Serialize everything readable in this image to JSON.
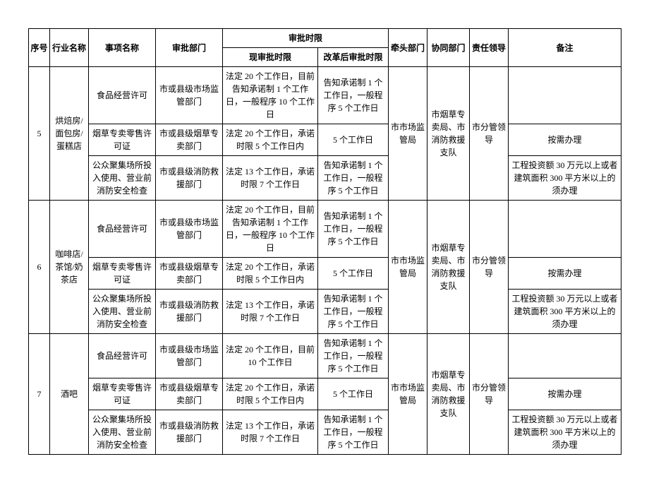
{
  "headers": {
    "seq": "序号",
    "industry": "行业名称",
    "item": "事项名称",
    "dept": "审批部门",
    "approvalTime": "审批时限",
    "current": "现审批时限",
    "reform": "改革后审批时限",
    "leadDept": "牵头部门",
    "assistDept": "协同部门",
    "respLeader": "责任领导",
    "note": "备注"
  },
  "groups": [
    {
      "seq": "5",
      "industry": "烘焙房/面包房/蛋糕店",
      "leadDept": "市市场监管局",
      "assistDept": "市烟草专卖局、市消防救援支队",
      "respLeader": "市分管领导",
      "rows": [
        {
          "item": "食品经营许可",
          "dept": "市或县级市场监管部门",
          "current": "法定 20 个工作日，目前告知承诺制 1 个工作日，一般程序 10 个工作日",
          "reform": "告知承诺制 1 个工作日，一般程序 5 个工作日",
          "note": ""
        },
        {
          "item": "烟草专卖零售许可证",
          "dept": "市或县级烟草专卖部门",
          "current": "法定 20 个工作日，承诺时限 5 个工作日内",
          "reform": "5 个工作日",
          "note": "按需办理"
        },
        {
          "item": "公众聚集场所投入使用、营业前消防安全检查",
          "dept": "市或县级消防救援部门",
          "current": "法定 13 个工作日，承诺时限 7 个工作日",
          "reform": "告知承诺制 1 个工作日，一般程序 5 个工作日",
          "note": "工程投资额 30 万元以上或者建筑面积 300 平方米以上的须办理"
        }
      ]
    },
    {
      "seq": "6",
      "industry": "咖啡店/茶馆/奶茶店",
      "leadDept": "市市场监管局",
      "assistDept": "市烟草专卖局、市消防救援支队",
      "respLeader": "市分管领导",
      "rows": [
        {
          "item": "食品经营许可",
          "dept": "市或县级市场监管部门",
          "current": "法定 20 个工作日，目前告知承诺制 1 个工作日，一般程序 10 个工作日",
          "reform": "告知承诺制 1 个工作日，一般程序 5 个工作日",
          "note": ""
        },
        {
          "item": "烟草专卖零售许可证",
          "dept": "市或县级烟草专卖部门",
          "current": "法定 20 个工作日，承诺时限 5 个工作日内",
          "reform": "5 个工作日",
          "note": "按需办理"
        },
        {
          "item": "公众聚集场所投入使用、营业前消防安全检查",
          "dept": "市或县级消防救援部门",
          "current": "法定 13 个工作日，承诺时限 7 个工作日",
          "reform": "告知承诺制 1 个工作日，一般程序 5 个工作日",
          "note": "工程投资额 30 万元以上或者建筑面积 300 平方米以上的须办理"
        }
      ]
    },
    {
      "seq": "7",
      "industry": "酒吧",
      "leadDept": "市市场监管局",
      "assistDept": "市烟草专卖局、市消防救援支队",
      "respLeader": "市分管领导",
      "rows": [
        {
          "item": "食品经营许可",
          "dept": "市或县级市场监管部门",
          "current": "法定 20 个工作日，目前 10 个工作日",
          "reform": "告知承诺制 1 个工作日，一般程序 5 个工作日",
          "note": ""
        },
        {
          "item": "烟草专卖零售许可证",
          "dept": "市或县级烟草专卖部门",
          "current": "法定 20 个工作日，承诺时限 5 个工作日内",
          "reform": "5 个工作日",
          "note": "按需办理"
        },
        {
          "item": "公众聚集场所投入使用、营业前消防安全检查",
          "dept": "市或县级消防救援部门",
          "current": "法定 13 个工作日，承诺时限 7 个工作日",
          "reform": "告知承诺制 1 个工作日，一般程序 5 个工作日",
          "note": "工程投资额 30 万元以上或者建筑面积 300 平方米以上的须办理"
        }
      ]
    }
  ]
}
